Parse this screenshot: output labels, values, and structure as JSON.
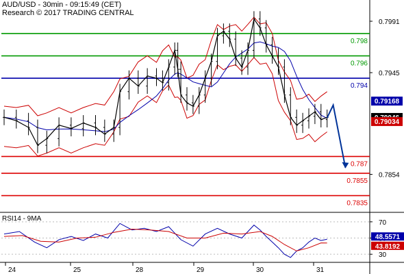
{
  "header": {
    "title": "AUD/USD - 30min - 09:15:49 (CET)",
    "subtitle": "Research © 2017 TRADING CENTRAL"
  },
  "chart_data": [
    {
      "type": "candlestick",
      "symbol": "AUD/USD",
      "timeframe": "30min",
      "ylim": [
        0.782,
        0.801
      ],
      "y_ticks": [
        "0.7991",
        "0.7945",
        "0.7854"
      ],
      "x_ticks": [
        "24",
        "25",
        "28",
        "29",
        "30",
        "31"
      ],
      "grid": false,
      "levels": [
        {
          "label": "0.798",
          "value": 0.798,
          "color": "#009900",
          "role": "resistance"
        },
        {
          "label": "0.796",
          "value": 0.796,
          "color": "#009900",
          "role": "resistance"
        },
        {
          "label": "0.794",
          "value": 0.794,
          "color": "#0000aa",
          "role": "pivot"
        },
        {
          "label": "0.787",
          "value": 0.787,
          "color": "#dd0000",
          "role": "support"
        },
        {
          "label": "0.7855",
          "value": 0.7855,
          "color": "#dd0000",
          "role": "support"
        },
        {
          "label": "0.7835",
          "value": 0.7835,
          "color": "#dd0000",
          "role": "support"
        }
      ],
      "badges": [
        {
          "label": "0.79168",
          "value": 0.79168,
          "color": "#0000aa"
        },
        {
          "label": "0.79046",
          "value": 0.79046,
          "color": "#000000"
        },
        {
          "label": "0.79034",
          "value": 0.79034,
          "color": "#cc0000"
        }
      ],
      "close_series": [
        {
          "x": 0,
          "y": 0.7905
        },
        {
          "x": 4,
          "y": 0.7902
        },
        {
          "x": 8,
          "y": 0.7896
        },
        {
          "x": 11,
          "y": 0.788
        },
        {
          "x": 14,
          "y": 0.7886
        },
        {
          "x": 18,
          "y": 0.7898
        },
        {
          "x": 22,
          "y": 0.7895
        },
        {
          "x": 26,
          "y": 0.79
        },
        {
          "x": 30,
          "y": 0.7896
        },
        {
          "x": 33,
          "y": 0.789
        },
        {
          "x": 36,
          "y": 0.7896
        },
        {
          "x": 38,
          "y": 0.7928
        },
        {
          "x": 41,
          "y": 0.794
        },
        {
          "x": 44,
          "y": 0.7933
        },
        {
          "x": 47,
          "y": 0.7942
        },
        {
          "x": 50,
          "y": 0.794
        },
        {
          "x": 52,
          "y": 0.7936
        },
        {
          "x": 54,
          "y": 0.795
        },
        {
          "x": 56,
          "y": 0.7965
        },
        {
          "x": 57,
          "y": 0.7948
        },
        {
          "x": 58,
          "y": 0.7925
        },
        {
          "x": 60,
          "y": 0.7918
        },
        {
          "x": 62,
          "y": 0.7915
        },
        {
          "x": 64,
          "y": 0.7925
        },
        {
          "x": 66,
          "y": 0.794
        },
        {
          "x": 68,
          "y": 0.7955
        },
        {
          "x": 70,
          "y": 0.7978
        },
        {
          "x": 72,
          "y": 0.7982
        },
        {
          "x": 74,
          "y": 0.7975
        },
        {
          "x": 76,
          "y": 0.7958
        },
        {
          "x": 78,
          "y": 0.795
        },
        {
          "x": 80,
          "y": 0.7965
        },
        {
          "x": 82,
          "y": 0.7993
        },
        {
          "x": 84,
          "y": 0.7985
        },
        {
          "x": 86,
          "y": 0.797
        },
        {
          "x": 88,
          "y": 0.796
        },
        {
          "x": 90,
          "y": 0.795
        },
        {
          "x": 92,
          "y": 0.7925
        },
        {
          "x": 94,
          "y": 0.7905
        },
        {
          "x": 96,
          "y": 0.7898
        },
        {
          "x": 98,
          "y": 0.7902
        },
        {
          "x": 100,
          "y": 0.7906
        },
        {
          "x": 102,
          "y": 0.791
        },
        {
          "x": 104,
          "y": 0.7903
        },
        {
          "x": 106,
          "y": 0.7905
        }
      ],
      "projection": [
        {
          "x": 106,
          "y": 0.79046
        },
        {
          "x": 108,
          "y": 0.7916
        },
        {
          "x": 112,
          "y": 0.786
        }
      ]
    },
    {
      "type": "line",
      "title": "RSI14 - 9MA",
      "ylim": [
        20,
        80
      ],
      "y_ticks": [
        "70",
        "50",
        "30"
      ],
      "badges": [
        {
          "label": "48.5571",
          "value": 48.5571,
          "color": "#0000aa"
        },
        {
          "label": "43.8192",
          "value": 43.8192,
          "color": "#cc0000"
        }
      ],
      "series": [
        {
          "values": [
            [
              0,
              55
            ],
            [
              5,
              58
            ],
            [
              10,
              45
            ],
            [
              14,
              38
            ],
            [
              18,
              48
            ],
            [
              22,
              52
            ],
            [
              26,
              47
            ],
            [
              30,
              55
            ],
            [
              34,
              50
            ],
            [
              38,
              68
            ],
            [
              42,
              60
            ],
            [
              46,
              62
            ],
            [
              50,
              58
            ],
            [
              54,
              64
            ],
            [
              58,
              48
            ],
            [
              62,
              40
            ],
            [
              66,
              55
            ],
            [
              70,
              62
            ],
            [
              74,
              55
            ],
            [
              78,
              50
            ],
            [
              82,
              66
            ],
            [
              84,
              60
            ],
            [
              86,
              52
            ],
            [
              88,
              45
            ],
            [
              90,
              38
            ],
            [
              92,
              30
            ],
            [
              94,
              26
            ],
            [
              96,
              34
            ],
            [
              98,
              38
            ],
            [
              100,
              45
            ],
            [
              102,
              50
            ],
            [
              104,
              47
            ],
            [
              106,
              48.5571
            ]
          ],
          "color": "#0000aa"
        },
        {
          "values": [
            [
              0,
              52
            ],
            [
              6,
              53
            ],
            [
              12,
              46
            ],
            [
              18,
              45
            ],
            [
              24,
              50
            ],
            [
              30,
              51
            ],
            [
              36,
              57
            ],
            [
              42,
              61
            ],
            [
              48,
              60
            ],
            [
              54,
              58
            ],
            [
              60,
              50
            ],
            [
              66,
              50
            ],
            [
              72,
              56
            ],
            [
              78,
              55
            ],
            [
              84,
              58
            ],
            [
              88,
              52
            ],
            [
              92,
              42
            ],
            [
              96,
              34
            ],
            [
              100,
              38
            ],
            [
              104,
              44
            ],
            [
              106,
              43.8192
            ]
          ],
          "color": "#cc0000"
        }
      ]
    }
  ]
}
